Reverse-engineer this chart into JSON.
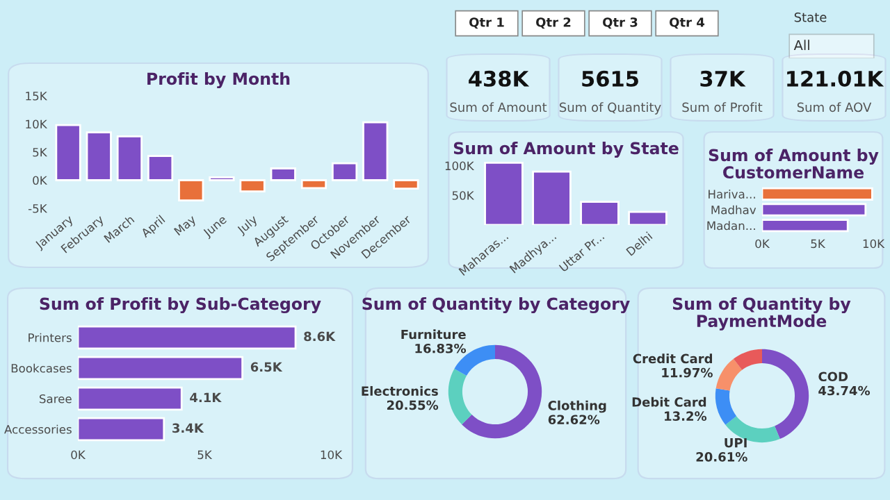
{
  "chart_data": [
    {
      "type": "other",
      "annotations": [
        "Qtr 1",
        "Qtr 2",
        "Qtr 3",
        "Qtr 4",
        "State",
        "All"
      ]
    },
    {
      "type": "bar",
      "title": "Profit by Month",
      "categories": [
        "January",
        "February",
        "March",
        "April",
        "May",
        "June",
        "July",
        "August",
        "September",
        "October",
        "November",
        "December"
      ],
      "values": [
        9.8,
        8.5,
        7.8,
        4.3,
        -3.6,
        0.5,
        -2.0,
        2.1,
        -1.4,
        3.0,
        10.3,
        -1.5
      ],
      "colors": [
        "#7e4fc6",
        "#7e4fc6",
        "#7e4fc6",
        "#7e4fc6",
        "#e8703a",
        "#7e4fc6",
        "#e8703a",
        "#7e4fc6",
        "#e8703a",
        "#7e4fc6",
        "#7e4fc6",
        "#e8703a"
      ],
      "ylim": [
        -5,
        15
      ],
      "yticks": [
        {
          "value": -5,
          "label": "-5K"
        },
        {
          "value": 0,
          "label": "0K"
        },
        {
          "value": 5,
          "label": "5K"
        },
        {
          "value": 10,
          "label": "10K"
        },
        {
          "value": 15,
          "label": "15K"
        }
      ]
    },
    {
      "type": "other",
      "annotations": [
        "438K",
        "Sum of Amount",
        "5615",
        "Sum of Quantity",
        "37K",
        "Sum of Profit",
        "121.01K",
        "Sum of AOV"
      ]
    },
    {
      "type": "bar",
      "title": "Sum of Amount by State",
      "categories": [
        "Maharas...",
        "Madhya...",
        "Uttar Pr...",
        "Delhi"
      ],
      "values": [
        105,
        90,
        39,
        22
      ],
      "color": "#7e4fc6",
      "ylim": [
        0,
        110
      ],
      "yticks": [
        {
          "value": 50,
          "label": "50K"
        },
        {
          "value": 100,
          "label": "100K"
        }
      ]
    },
    {
      "type": "bar",
      "orientation": "horizontal",
      "title": "Sum of Amount by\nCustomerName",
      "categories": [
        "Hariva...",
        "Madhav",
        "Madan..."
      ],
      "values": [
        9.9,
        9.3,
        7.7
      ],
      "colors": [
        "#e8703a",
        "#7e4fc6",
        "#7e4fc6"
      ],
      "xlim": [
        0,
        10
      ],
      "xticks": [
        {
          "value": 0,
          "label": "0K"
        },
        {
          "value": 5,
          "label": "5K"
        },
        {
          "value": 10,
          "label": "10K"
        }
      ]
    },
    {
      "type": "bar",
      "orientation": "horizontal",
      "title": "Sum of Profit by Sub-Category",
      "categories": [
        "Printers",
        "Bookcases",
        "Saree",
        "Accessories"
      ],
      "values": [
        8.6,
        6.5,
        4.1,
        3.4
      ],
      "value_labels": [
        "8.6K",
        "6.5K",
        "4.1K",
        "3.4K"
      ],
      "color": "#7e4fc6",
      "xlim": [
        0,
        10
      ],
      "xticks": [
        {
          "value": 0,
          "label": "0K"
        },
        {
          "value": 5,
          "label": "5K"
        },
        {
          "value": 10,
          "label": "10K"
        }
      ]
    },
    {
      "type": "donut",
      "title": "Sum of Quantity by Category",
      "categories": [
        "Clothing",
        "Electronics",
        "Furniture"
      ],
      "values": [
        62.62,
        20.55,
        16.83
      ],
      "value_labels": [
        "62.62%",
        "20.55%",
        "16.83%"
      ],
      "colors": [
        "#7e4fc6",
        "#5cd0bf",
        "#3d8ef5"
      ]
    },
    {
      "type": "donut",
      "title": "Sum of Quantity by\nPaymentMode",
      "categories": [
        "COD",
        "UPI",
        "Debit Card",
        "Credit Card",
        null
      ],
      "values": [
        43.74,
        20.61,
        13.2,
        11.97,
        10.48
      ],
      "value_labels": [
        "43.74%",
        "20.61%",
        "13.2%",
        "11.97%",
        null
      ],
      "colors": [
        "#7e4fc6",
        "#5cd0bf",
        "#3d8ef5",
        "#f7906a",
        "#e85a5a"
      ]
    }
  ]
}
